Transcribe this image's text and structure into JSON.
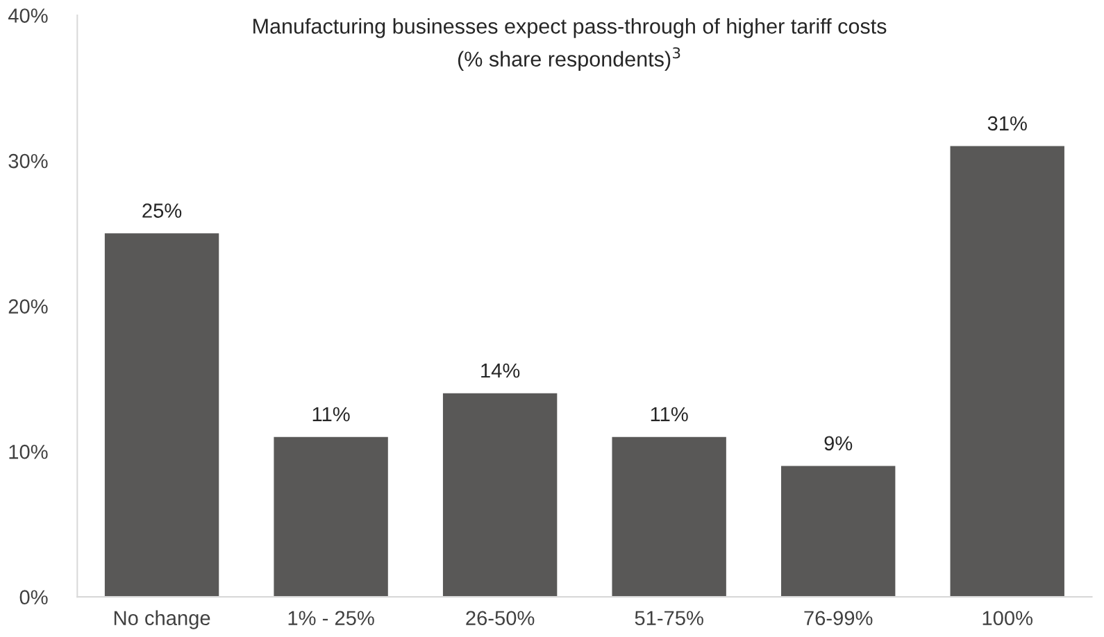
{
  "chart_data": {
    "type": "bar",
    "title": "Manufacturing businesses expect pass-through of higher tariff costs",
    "subtitle": "(% share respondents)$^{3}$",
    "categories": [
      "No change",
      "1% - 25%",
      "26-50%",
      "51-75%",
      "76-99%",
      "100%"
    ],
    "values": [
      25,
      11,
      14,
      11,
      9,
      31
    ],
    "value_labels": [
      "25%",
      "11%",
      "14%",
      "11%",
      "9%",
      "31%"
    ],
    "color": "#595857",
    "ylim": [
      0,
      40
    ],
    "yticks": [
      {
        "value": 0,
        "label": "0%"
      },
      {
        "value": 10,
        "label": "10%"
      },
      {
        "value": 20,
        "label": "20%"
      },
      {
        "value": 30,
        "label": "30%"
      },
      {
        "value": 40,
        "label": "40%"
      }
    ],
    "grid": false,
    "legend": false
  }
}
